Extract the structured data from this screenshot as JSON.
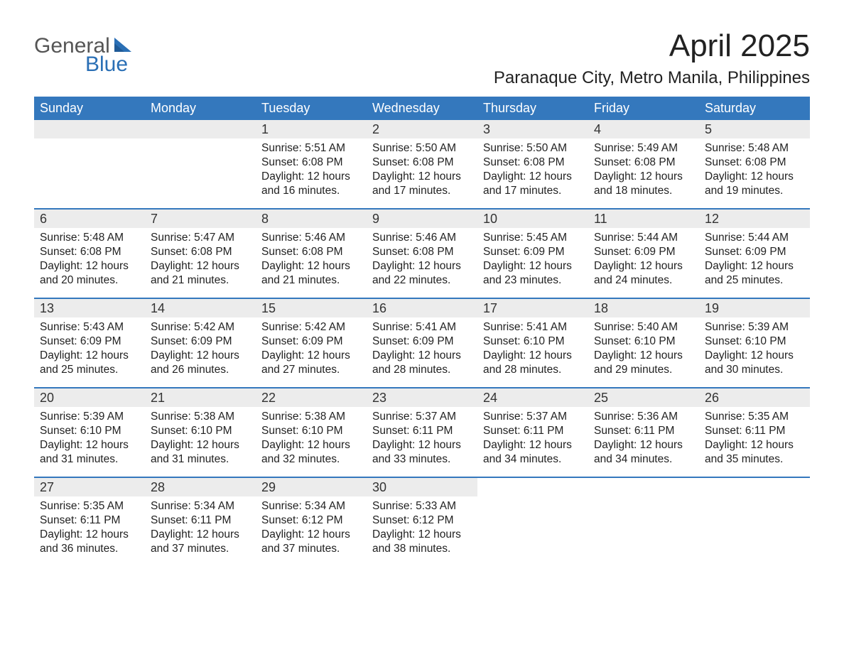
{
  "logo": {
    "word1": "General",
    "word2": "Blue"
  },
  "header": {
    "month_title": "April 2025",
    "location": "Paranaque City, Metro Manila, Philippines"
  },
  "colors": {
    "header_bg": "#3478bd",
    "header_text": "#ffffff",
    "daynum_bg": "#ececec",
    "week_border": "#3478bd",
    "logo_blue": "#2a6fb5",
    "logo_gray": "#555555",
    "body_text": "#222222",
    "page_bg": "#ffffff"
  },
  "day_labels": [
    "Sunday",
    "Monday",
    "Tuesday",
    "Wednesday",
    "Thursday",
    "Friday",
    "Saturday"
  ],
  "weeks": [
    [
      {
        "empty": true
      },
      {
        "empty": true
      },
      {
        "num": "1",
        "sunrise": "Sunrise: 5:51 AM",
        "sunset": "Sunset: 6:08 PM",
        "day1": "Daylight: 12 hours",
        "day2": "and 16 minutes."
      },
      {
        "num": "2",
        "sunrise": "Sunrise: 5:50 AM",
        "sunset": "Sunset: 6:08 PM",
        "day1": "Daylight: 12 hours",
        "day2": "and 17 minutes."
      },
      {
        "num": "3",
        "sunrise": "Sunrise: 5:50 AM",
        "sunset": "Sunset: 6:08 PM",
        "day1": "Daylight: 12 hours",
        "day2": "and 17 minutes."
      },
      {
        "num": "4",
        "sunrise": "Sunrise: 5:49 AM",
        "sunset": "Sunset: 6:08 PM",
        "day1": "Daylight: 12 hours",
        "day2": "and 18 minutes."
      },
      {
        "num": "5",
        "sunrise": "Sunrise: 5:48 AM",
        "sunset": "Sunset: 6:08 PM",
        "day1": "Daylight: 12 hours",
        "day2": "and 19 minutes."
      }
    ],
    [
      {
        "num": "6",
        "sunrise": "Sunrise: 5:48 AM",
        "sunset": "Sunset: 6:08 PM",
        "day1": "Daylight: 12 hours",
        "day2": "and 20 minutes."
      },
      {
        "num": "7",
        "sunrise": "Sunrise: 5:47 AM",
        "sunset": "Sunset: 6:08 PM",
        "day1": "Daylight: 12 hours",
        "day2": "and 21 minutes."
      },
      {
        "num": "8",
        "sunrise": "Sunrise: 5:46 AM",
        "sunset": "Sunset: 6:08 PM",
        "day1": "Daylight: 12 hours",
        "day2": "and 21 minutes."
      },
      {
        "num": "9",
        "sunrise": "Sunrise: 5:46 AM",
        "sunset": "Sunset: 6:08 PM",
        "day1": "Daylight: 12 hours",
        "day2": "and 22 minutes."
      },
      {
        "num": "10",
        "sunrise": "Sunrise: 5:45 AM",
        "sunset": "Sunset: 6:09 PM",
        "day1": "Daylight: 12 hours",
        "day2": "and 23 minutes."
      },
      {
        "num": "11",
        "sunrise": "Sunrise: 5:44 AM",
        "sunset": "Sunset: 6:09 PM",
        "day1": "Daylight: 12 hours",
        "day2": "and 24 minutes."
      },
      {
        "num": "12",
        "sunrise": "Sunrise: 5:44 AM",
        "sunset": "Sunset: 6:09 PM",
        "day1": "Daylight: 12 hours",
        "day2": "and 25 minutes."
      }
    ],
    [
      {
        "num": "13",
        "sunrise": "Sunrise: 5:43 AM",
        "sunset": "Sunset: 6:09 PM",
        "day1": "Daylight: 12 hours",
        "day2": "and 25 minutes."
      },
      {
        "num": "14",
        "sunrise": "Sunrise: 5:42 AM",
        "sunset": "Sunset: 6:09 PM",
        "day1": "Daylight: 12 hours",
        "day2": "and 26 minutes."
      },
      {
        "num": "15",
        "sunrise": "Sunrise: 5:42 AM",
        "sunset": "Sunset: 6:09 PM",
        "day1": "Daylight: 12 hours",
        "day2": "and 27 minutes."
      },
      {
        "num": "16",
        "sunrise": "Sunrise: 5:41 AM",
        "sunset": "Sunset: 6:09 PM",
        "day1": "Daylight: 12 hours",
        "day2": "and 28 minutes."
      },
      {
        "num": "17",
        "sunrise": "Sunrise: 5:41 AM",
        "sunset": "Sunset: 6:10 PM",
        "day1": "Daylight: 12 hours",
        "day2": "and 28 minutes."
      },
      {
        "num": "18",
        "sunrise": "Sunrise: 5:40 AM",
        "sunset": "Sunset: 6:10 PM",
        "day1": "Daylight: 12 hours",
        "day2": "and 29 minutes."
      },
      {
        "num": "19",
        "sunrise": "Sunrise: 5:39 AM",
        "sunset": "Sunset: 6:10 PM",
        "day1": "Daylight: 12 hours",
        "day2": "and 30 minutes."
      }
    ],
    [
      {
        "num": "20",
        "sunrise": "Sunrise: 5:39 AM",
        "sunset": "Sunset: 6:10 PM",
        "day1": "Daylight: 12 hours",
        "day2": "and 31 minutes."
      },
      {
        "num": "21",
        "sunrise": "Sunrise: 5:38 AM",
        "sunset": "Sunset: 6:10 PM",
        "day1": "Daylight: 12 hours",
        "day2": "and 31 minutes."
      },
      {
        "num": "22",
        "sunrise": "Sunrise: 5:38 AM",
        "sunset": "Sunset: 6:10 PM",
        "day1": "Daylight: 12 hours",
        "day2": "and 32 minutes."
      },
      {
        "num": "23",
        "sunrise": "Sunrise: 5:37 AM",
        "sunset": "Sunset: 6:11 PM",
        "day1": "Daylight: 12 hours",
        "day2": "and 33 minutes."
      },
      {
        "num": "24",
        "sunrise": "Sunrise: 5:37 AM",
        "sunset": "Sunset: 6:11 PM",
        "day1": "Daylight: 12 hours",
        "day2": "and 34 minutes."
      },
      {
        "num": "25",
        "sunrise": "Sunrise: 5:36 AM",
        "sunset": "Sunset: 6:11 PM",
        "day1": "Daylight: 12 hours",
        "day2": "and 34 minutes."
      },
      {
        "num": "26",
        "sunrise": "Sunrise: 5:35 AM",
        "sunset": "Sunset: 6:11 PM",
        "day1": "Daylight: 12 hours",
        "day2": "and 35 minutes."
      }
    ],
    [
      {
        "num": "27",
        "sunrise": "Sunrise: 5:35 AM",
        "sunset": "Sunset: 6:11 PM",
        "day1": "Daylight: 12 hours",
        "day2": "and 36 minutes."
      },
      {
        "num": "28",
        "sunrise": "Sunrise: 5:34 AM",
        "sunset": "Sunset: 6:11 PM",
        "day1": "Daylight: 12 hours",
        "day2": "and 37 minutes."
      },
      {
        "num": "29",
        "sunrise": "Sunrise: 5:34 AM",
        "sunset": "Sunset: 6:12 PM",
        "day1": "Daylight: 12 hours",
        "day2": "and 37 minutes."
      },
      {
        "num": "30",
        "sunrise": "Sunrise: 5:33 AM",
        "sunset": "Sunset: 6:12 PM",
        "day1": "Daylight: 12 hours",
        "day2": "and 38 minutes."
      },
      {
        "empty": true,
        "trailing": true
      },
      {
        "empty": true,
        "trailing": true
      },
      {
        "empty": true,
        "trailing": true
      }
    ]
  ]
}
